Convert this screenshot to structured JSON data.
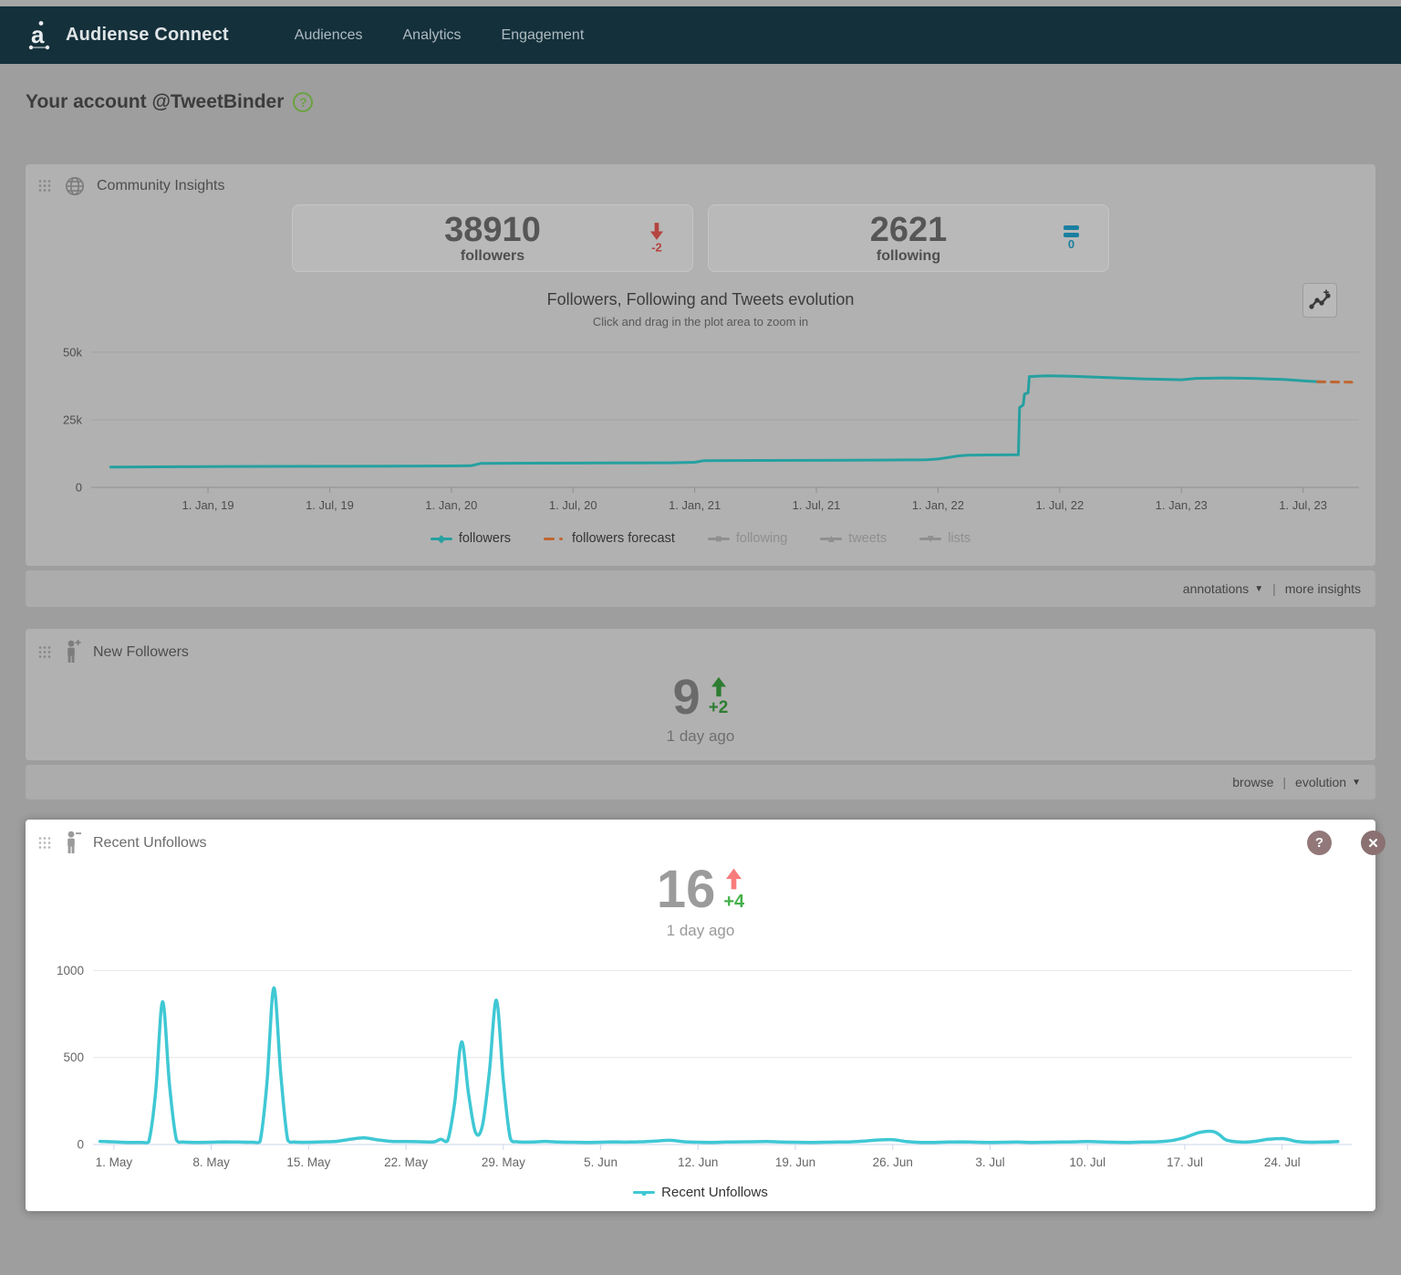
{
  "nav": {
    "brand": "Audiense Connect",
    "items": [
      {
        "label": "Audiences"
      },
      {
        "label": "Analytics"
      },
      {
        "label": "Engagement"
      }
    ]
  },
  "page": {
    "heading": "Your account @TweetBinder",
    "help_glyph": "?"
  },
  "community_insights": {
    "title": "Community Insights",
    "stats": [
      {
        "value": "38910",
        "label": "followers",
        "delta": "-2",
        "direction": "down"
      },
      {
        "value": "2621",
        "label": "following",
        "delta": "0",
        "direction": "equal"
      }
    ],
    "footer": {
      "annotations_label": "annotations",
      "caret": "▼",
      "separator": "|",
      "more_label": "more insights"
    }
  },
  "new_followers": {
    "title": "New Followers",
    "value": "9",
    "delta": "+2",
    "ago": "1 day ago",
    "footer": {
      "browse_label": "browse",
      "separator": "|",
      "evolution_label": "evolution",
      "caret": "▼"
    }
  },
  "recent_unfollows": {
    "title": "Recent Unfollows",
    "value": "16",
    "delta": "+4",
    "ago": "1 day ago",
    "help_glyph": "?",
    "close_glyph": "✕"
  },
  "colors": {
    "navbar": "#14303b",
    "followers_line": "#26a0a0",
    "forecast_line": "#c0662f",
    "unfollows_line": "#3fc8d4",
    "delta_down_red": "#b5443f",
    "delta_equal_blue": "#1a7fa0",
    "delta_up_green": "#2e7d32",
    "unfollow_arrow_red": "#f87c7b",
    "unfollow_delta_green": "#44b04a"
  },
  "chart_data": [
    {
      "type": "line",
      "title": "Followers, Following and Tweets evolution",
      "subtitle": "Click and drag in the plot area to zoom in",
      "xlabel": "",
      "ylabel": "",
      "grid": true,
      "legend_position": "bottom",
      "xlim": [
        2018.52,
        2023.73
      ],
      "ylim": [
        0,
        52000
      ],
      "yticks": [
        {
          "v": 0,
          "label": "0"
        },
        {
          "v": 25000,
          "label": "25k"
        },
        {
          "v": 50000,
          "label": "50k"
        }
      ],
      "xticks": [
        {
          "v": 2019.0,
          "label": "1. Jan, 19"
        },
        {
          "v": 2019.5,
          "label": "1. Jul, 19"
        },
        {
          "v": 2020.0,
          "label": "1. Jan, 20"
        },
        {
          "v": 2020.5,
          "label": "1. Jul, 20"
        },
        {
          "v": 2021.0,
          "label": "1. Jan, 21"
        },
        {
          "v": 2021.5,
          "label": "1. Jul, 21"
        },
        {
          "v": 2022.0,
          "label": "1. Jan, 22"
        },
        {
          "v": 2022.5,
          "label": "1. Jul, 22"
        },
        {
          "v": 2023.0,
          "label": "1. Jan, 23"
        },
        {
          "v": 2023.5,
          "label": "1. Jul, 23"
        }
      ],
      "legend": [
        {
          "label": "followers",
          "color": "#26a0a0",
          "marker": "diamond",
          "enabled": true
        },
        {
          "label": "followers forecast",
          "color": "#c0662f",
          "marker": "dash",
          "enabled": true
        },
        {
          "label": "following",
          "color": "#8f8f8f",
          "marker": "square",
          "enabled": false
        },
        {
          "label": "tweets",
          "color": "#8f8f8f",
          "marker": "triangle-up",
          "enabled": false
        },
        {
          "label": "lists",
          "color": "#8f8f8f",
          "marker": "triangle-down",
          "enabled": false
        }
      ],
      "series": [
        {
          "name": "followers",
          "color": "#26a0a0",
          "width": 3,
          "smooth": false,
          "points": [
            [
              2018.6,
              7500
            ],
            [
              2018.8,
              7600
            ],
            [
              2019.0,
              7700
            ],
            [
              2019.25,
              7750
            ],
            [
              2019.5,
              7800
            ],
            [
              2019.75,
              7850
            ],
            [
              2020.0,
              7950
            ],
            [
              2020.08,
              8000
            ],
            [
              2020.12,
              8850
            ],
            [
              2020.3,
              8950
            ],
            [
              2020.6,
              9000
            ],
            [
              2020.9,
              9100
            ],
            [
              2021.0,
              9300
            ],
            [
              2021.04,
              9900
            ],
            [
              2021.25,
              9950
            ],
            [
              2021.5,
              10000
            ],
            [
              2021.75,
              10100
            ],
            [
              2021.95,
              10200
            ],
            [
              2022.0,
              10500
            ],
            [
              2022.04,
              11000
            ],
            [
              2022.08,
              11600
            ],
            [
              2022.12,
              11900
            ],
            [
              2022.2,
              12000
            ],
            [
              2022.33,
              12050
            ],
            [
              2022.335,
              29500
            ],
            [
              2022.35,
              30500
            ],
            [
              2022.355,
              34500
            ],
            [
              2022.37,
              35000
            ],
            [
              2022.375,
              41000
            ],
            [
              2022.45,
              41300
            ],
            [
              2022.55,
              41100
            ],
            [
              2022.7,
              40600
            ],
            [
              2022.85,
              40100
            ],
            [
              2023.0,
              39800
            ],
            [
              2023.06,
              40300
            ],
            [
              2023.18,
              40500
            ],
            [
              2023.3,
              40300
            ],
            [
              2023.42,
              39900
            ],
            [
              2023.52,
              39300
            ],
            [
              2023.58,
              39000
            ]
          ]
        },
        {
          "name": "followers forecast",
          "color": "#c0662f",
          "width": 3,
          "dash": "8 7",
          "smooth": false,
          "points": [
            [
              2023.56,
              39100
            ],
            [
              2023.7,
              38900
            ]
          ]
        }
      ]
    },
    {
      "type": "line",
      "title": "Recent Unfollows",
      "xlabel": "",
      "ylabel": "",
      "grid": true,
      "legend_position": "bottom",
      "xlim": [
        -1.5,
        89
      ],
      "ylim": [
        0,
        1060
      ],
      "yticks": [
        {
          "v": 0,
          "label": "0"
        },
        {
          "v": 500,
          "label": "500"
        },
        {
          "v": 1000,
          "label": "1000"
        }
      ],
      "xticks": [
        {
          "v": 0,
          "label": "1. May"
        },
        {
          "v": 7,
          "label": "8. May"
        },
        {
          "v": 14,
          "label": "15. May"
        },
        {
          "v": 21,
          "label": "22. May"
        },
        {
          "v": 28,
          "label": "29. May"
        },
        {
          "v": 35,
          "label": "5. Jun"
        },
        {
          "v": 42,
          "label": "12. Jun"
        },
        {
          "v": 49,
          "label": "19. Jun"
        },
        {
          "v": 56,
          "label": "26. Jun"
        },
        {
          "v": 63,
          "label": "3. Jul"
        },
        {
          "v": 70,
          "label": "10. Jul"
        },
        {
          "v": 77,
          "label": "17. Jul"
        },
        {
          "v": 84,
          "label": "24. Jul"
        }
      ],
      "legend": [
        {
          "label": "Recent Unfollows",
          "color": "#3fc8d4",
          "marker": "circle",
          "enabled": true
        }
      ],
      "series": [
        {
          "name": "Recent Unfollows",
          "color": "#3fc8d4",
          "width": 3.5,
          "smooth": true,
          "points": [
            [
              -1,
              18
            ],
            [
              0,
              15
            ],
            [
              1,
              12
            ],
            [
              2,
              12
            ],
            [
              2.5,
              14
            ],
            [
              3,
              300
            ],
            [
              3.5,
              820
            ],
            [
              4,
              340
            ],
            [
              4.5,
              25
            ],
            [
              5,
              14
            ],
            [
              6,
              12
            ],
            [
              7,
              13
            ],
            [
              8,
              15
            ],
            [
              9,
              14
            ],
            [
              10,
              13
            ],
            [
              10.5,
              16
            ],
            [
              11,
              350
            ],
            [
              11.5,
              900
            ],
            [
              12,
              400
            ],
            [
              12.5,
              25
            ],
            [
              13,
              14
            ],
            [
              14,
              13
            ],
            [
              15,
              15
            ],
            [
              16,
              18
            ],
            [
              17,
              30
            ],
            [
              18,
              38
            ],
            [
              19,
              26
            ],
            [
              20,
              18
            ],
            [
              21,
              17
            ],
            [
              22,
              16
            ],
            [
              23,
              15
            ],
            [
              23.5,
              30
            ],
            [
              24,
              22
            ],
            [
              24.5,
              240
            ],
            [
              25,
              590
            ],
            [
              25.5,
              290
            ],
            [
              26,
              70
            ],
            [
              26.5,
              110
            ],
            [
              27,
              420
            ],
            [
              27.5,
              830
            ],
            [
              28,
              370
            ],
            [
              28.5,
              35
            ],
            [
              29,
              16
            ],
            [
              30,
              14
            ],
            [
              31,
              18
            ],
            [
              32,
              14
            ],
            [
              33,
              13
            ],
            [
              34,
              12
            ],
            [
              35,
              13
            ],
            [
              36,
              15
            ],
            [
              37,
              14
            ],
            [
              38,
              16
            ],
            [
              39,
              20
            ],
            [
              40,
              24
            ],
            [
              41,
              16
            ],
            [
              42,
              13
            ],
            [
              43,
              12
            ],
            [
              44,
              14
            ],
            [
              45,
              15
            ],
            [
              46,
              16
            ],
            [
              47,
              17
            ],
            [
              48,
              14
            ],
            [
              49,
              13
            ],
            [
              50,
              12
            ],
            [
              51,
              13
            ],
            [
              52,
              14
            ],
            [
              53,
              15
            ],
            [
              54,
              20
            ],
            [
              55,
              26
            ],
            [
              56,
              28
            ],
            [
              57,
              17
            ],
            [
              58,
              12
            ],
            [
              59,
              12
            ],
            [
              60,
              14
            ],
            [
              61,
              15
            ],
            [
              62,
              13
            ],
            [
              63,
              12
            ],
            [
              64,
              13
            ],
            [
              65,
              14
            ],
            [
              66,
              12
            ],
            [
              67,
              13
            ],
            [
              68,
              14
            ],
            [
              69,
              15
            ],
            [
              70,
              17
            ],
            [
              71,
              15
            ],
            [
              72,
              13
            ],
            [
              73,
              12
            ],
            [
              74,
              14
            ],
            [
              75,
              16
            ],
            [
              76,
              22
            ],
            [
              77,
              40
            ],
            [
              78,
              68
            ],
            [
              79,
              75
            ],
            [
              79.5,
              55
            ],
            [
              80,
              25
            ],
            [
              81,
              14
            ],
            [
              82,
              18
            ],
            [
              83,
              30
            ],
            [
              84,
              34
            ],
            [
              84.5,
              28
            ],
            [
              85,
              18
            ],
            [
              86,
              13
            ],
            [
              87,
              14
            ],
            [
              88,
              17
            ]
          ]
        }
      ]
    }
  ]
}
